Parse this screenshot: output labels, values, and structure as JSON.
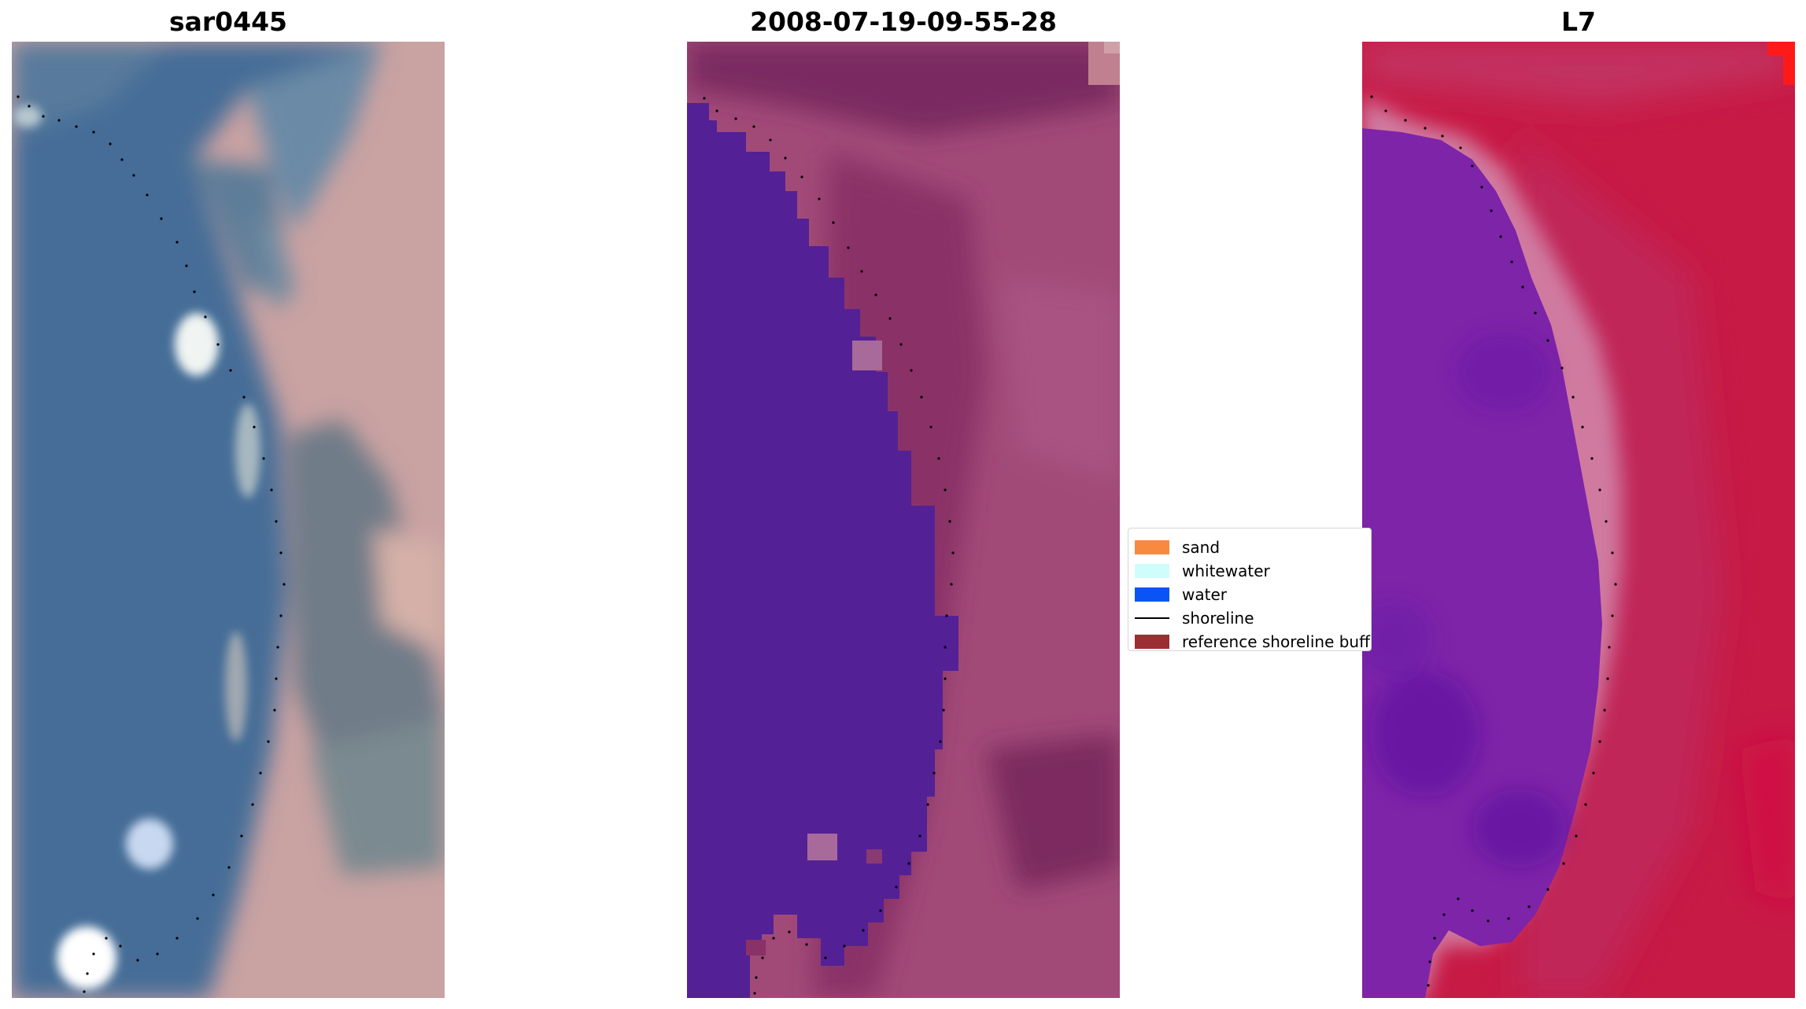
{
  "figure": {
    "panels": [
      {
        "title": "sar0445",
        "kind": "rgb-image"
      },
      {
        "title": "2008-07-19-09-55-28",
        "kind": "classified-image"
      },
      {
        "title": "L7",
        "kind": "index-image"
      }
    ],
    "legend": {
      "items": [
        {
          "label": "sand",
          "color": "#f78a3e",
          "type": "patch"
        },
        {
          "label": "whitewater",
          "color": "#cffdfc",
          "type": "patch"
        },
        {
          "label": "water",
          "color": "#0a54f5",
          "type": "patch"
        },
        {
          "label": "shoreline",
          "color": "#000000",
          "type": "line"
        },
        {
          "label": "reference shoreline buffer",
          "color": "#9a2e32",
          "type": "patch"
        }
      ]
    },
    "colors": {
      "water_class": "#532195",
      "land_mauve": "#a04775",
      "rgb_water": "#436a96",
      "rgb_land": "#c8a0a0",
      "index_land": "#c51440",
      "index_water": "#7a22a8"
    }
  },
  "chart_data": {
    "type": "image",
    "panels": [
      "sar0445",
      "2008-07-19-09-55-28",
      "L7"
    ],
    "legend": [
      "sand",
      "whitewater",
      "water",
      "shoreline",
      "reference shoreline buffer"
    ],
    "grid": false,
    "axes": "off",
    "legend_placement": "center-left of third panel"
  }
}
